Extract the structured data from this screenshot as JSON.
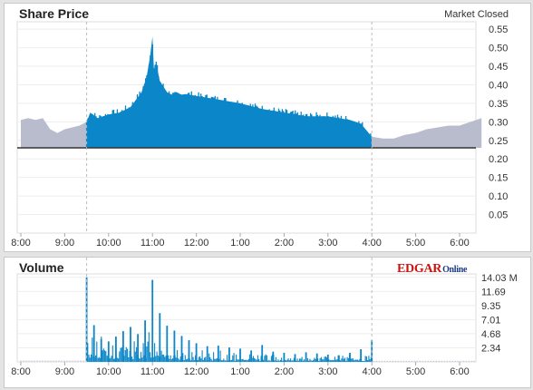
{
  "price_panel": {
    "title": "Share Price",
    "status": "Market Closed"
  },
  "volume_panel": {
    "title": "Volume",
    "logo_main": "EDGAR",
    "logo_sub": "Online"
  },
  "colors": {
    "regular_session": "#0a86c9",
    "extended_hours": "#b8bccd",
    "baseline": "#333333",
    "session_marker": "#bbbbbb",
    "grid": "#eeeeee"
  },
  "chart_data": [
    {
      "type": "area",
      "title": "Share Price",
      "xlabel": "",
      "ylabel": "",
      "x_ticks": [
        "8:00",
        "9:00",
        "10:00",
        "11:00",
        "12:00",
        "1:00",
        "2:00",
        "3:00",
        "4:00",
        "5:00",
        "6:00"
      ],
      "y_ticks": [
        "0.05",
        "0.10",
        "0.15",
        "0.20",
        "0.25",
        "0.30",
        "0.35",
        "0.40",
        "0.45",
        "0.50",
        "0.55"
      ],
      "ylim": [
        0,
        0.57
      ],
      "baseline": 0.23,
      "session_open": "9:30",
      "session_close": "4:00",
      "series": [
        {
          "session": "pre-market",
          "x": [
            "8:00",
            "8:10",
            "8:20",
            "8:30",
            "8:40",
            "8:50",
            "9:00",
            "9:10",
            "9:20",
            "9:30"
          ],
          "y": [
            0.305,
            0.31,
            0.305,
            0.31,
            0.28,
            0.27,
            0.28,
            0.285,
            0.29,
            0.3
          ]
        },
        {
          "session": "regular",
          "x": [
            "9:30",
            "9:35",
            "9:45",
            "10:00",
            "10:15",
            "10:30",
            "10:45",
            "10:52",
            "10:57",
            "11:00",
            "11:02",
            "11:05",
            "11:10",
            "11:20",
            "11:30",
            "11:45",
            "12:00",
            "12:30",
            "1:00",
            "1:30",
            "2:00",
            "2:30",
            "3:00",
            "3:30",
            "3:45",
            "4:00"
          ],
          "y": [
            0.3,
            0.325,
            0.31,
            0.32,
            0.325,
            0.34,
            0.38,
            0.42,
            0.48,
            0.53,
            0.44,
            0.46,
            0.41,
            0.38,
            0.37,
            0.375,
            0.37,
            0.36,
            0.35,
            0.335,
            0.325,
            0.315,
            0.315,
            0.305,
            0.295,
            0.26
          ]
        },
        {
          "session": "after-hours",
          "x": [
            "4:00",
            "4:15",
            "4:30",
            "4:45",
            "5:00",
            "5:15",
            "5:30",
            "5:45",
            "6:00",
            "6:15",
            "6:30"
          ],
          "y": [
            0.26,
            0.255,
            0.255,
            0.265,
            0.27,
            0.28,
            0.285,
            0.29,
            0.29,
            0.3,
            0.31
          ]
        }
      ]
    },
    {
      "type": "bar",
      "title": "Volume",
      "x_ticks": [
        "8:00",
        "9:00",
        "10:00",
        "11:00",
        "12:00",
        "1:00",
        "2:00",
        "3:00",
        "4:00",
        "5:00",
        "6:00"
      ],
      "y_ticks": [
        "2.34",
        "4.68",
        "7.01",
        "9.35",
        "11.69",
        "14.03 M"
      ],
      "ylim": [
        0,
        14.6
      ],
      "unit": "M",
      "series": [
        {
          "session": "regular",
          "x": [
            "9:30",
            "9:40",
            "9:50",
            "10:00",
            "10:10",
            "10:20",
            "10:30",
            "10:40",
            "10:50",
            "11:00",
            "11:10",
            "11:20",
            "11:30",
            "11:40",
            "11:50",
            "12:00",
            "12:15",
            "12:30",
            "12:45",
            "1:00",
            "1:15",
            "1:30",
            "1:45",
            "2:00",
            "2:15",
            "2:30",
            "2:45",
            "3:00",
            "3:15",
            "3:30",
            "3:45",
            "4:00"
          ],
          "y": [
            14.03,
            6.1,
            3.8,
            3.4,
            4.2,
            5.1,
            5.8,
            4.6,
            6.9,
            13.6,
            8.1,
            6.0,
            5.2,
            4.3,
            3.6,
            3.1,
            2.6,
            2.7,
            2.4,
            2.2,
            1.9,
            2.8,
            1.7,
            1.5,
            1.3,
            1.6,
            1.4,
            1.2,
            1.1,
            1.5,
            2.1,
            3.6
          ]
        }
      ]
    }
  ]
}
